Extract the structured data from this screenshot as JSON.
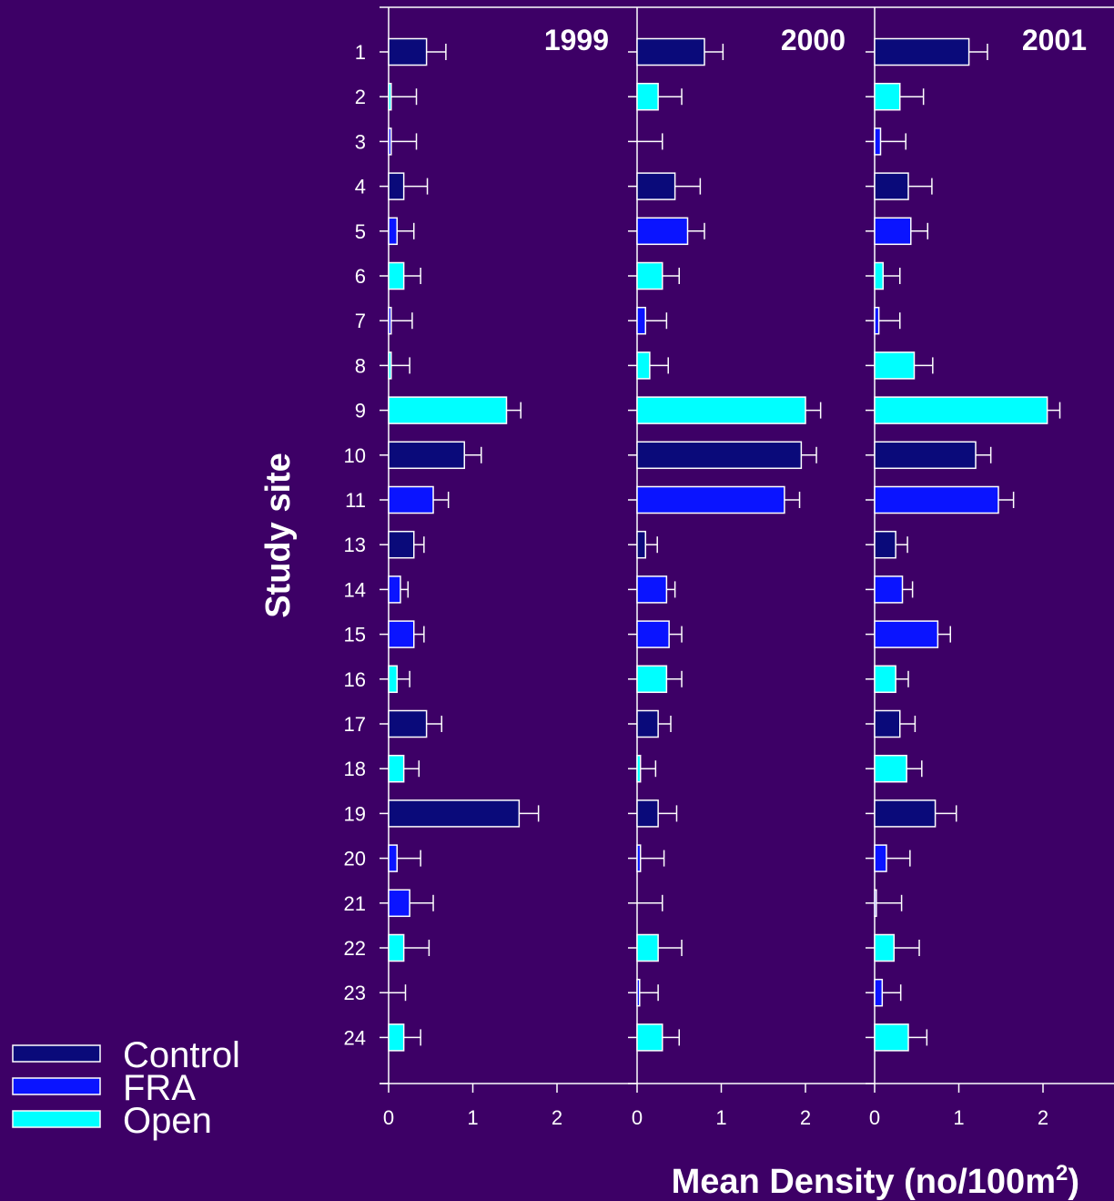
{
  "chart_data": {
    "type": "bar",
    "orientation": "horizontal",
    "ylabel": "Study site",
    "xlabel": "Mean Density (no/100m",
    "xlabel_superscript": "2",
    "xlabel_suffix": ")",
    "categories": [
      "1",
      "2",
      "3",
      "4",
      "5",
      "6",
      "7",
      "8",
      "9",
      "10",
      "11",
      "13",
      "14",
      "15",
      "16",
      "17",
      "18",
      "19",
      "20",
      "21",
      "22",
      "23",
      "24"
    ],
    "xlim": [
      0,
      3
    ],
    "xticks": [
      "0",
      "1",
      "2"
    ],
    "colors": {
      "Control": "#0a0a7a",
      "FRA": "#0a14ff",
      "Open": "#00ffff",
      "background": "#3d0066"
    },
    "legend": [
      {
        "name": "Control",
        "color": "#0a0a7a"
      },
      {
        "name": "FRA",
        "color": "#0a14ff"
      },
      {
        "name": "Open",
        "color": "#00ffff"
      }
    ],
    "legend_position": "bottom-left",
    "site_groups": [
      "Control",
      "Open",
      "FRA",
      "Control",
      "FRA",
      "Open",
      "FRA",
      "Open",
      "Open",
      "Control",
      "FRA",
      "Control",
      "FRA",
      "FRA",
      "Open",
      "Control",
      "Open",
      "Control",
      "FRA",
      "FRA",
      "Open",
      "FRA",
      "Open"
    ],
    "panels": [
      {
        "title": "1999",
        "values": [
          0.45,
          0.03,
          0.03,
          0.18,
          0.1,
          0.18,
          0.03,
          0.03,
          1.4,
          0.9,
          0.53,
          0.3,
          0.14,
          0.3,
          0.1,
          0.45,
          0.18,
          1.55,
          0.1,
          0.25,
          0.18,
          0.0,
          0.18
        ],
        "errors": [
          0.23,
          0.3,
          0.3,
          0.28,
          0.2,
          0.2,
          0.25,
          0.22,
          0.17,
          0.2,
          0.18,
          0.12,
          0.09,
          0.12,
          0.15,
          0.18,
          0.18,
          0.23,
          0.28,
          0.28,
          0.3,
          0.2,
          0.2
        ]
      },
      {
        "title": "2000",
        "values": [
          0.8,
          0.25,
          0.0,
          0.45,
          0.6,
          0.3,
          0.1,
          0.15,
          2.0,
          1.95,
          1.75,
          0.1,
          0.35,
          0.38,
          0.35,
          0.25,
          0.04,
          0.25,
          0.04,
          0.0,
          0.25,
          0.03,
          0.3
        ],
        "errors": [
          0.22,
          0.28,
          0.3,
          0.3,
          0.2,
          0.2,
          0.25,
          0.22,
          0.18,
          0.18,
          0.18,
          0.14,
          0.1,
          0.15,
          0.18,
          0.15,
          0.18,
          0.22,
          0.28,
          0.3,
          0.28,
          0.22,
          0.2
        ]
      },
      {
        "title": "2001",
        "values": [
          1.12,
          0.3,
          0.07,
          0.4,
          0.43,
          0.1,
          0.05,
          0.47,
          2.05,
          1.2,
          1.47,
          0.25,
          0.33,
          0.75,
          0.25,
          0.3,
          0.38,
          0.72,
          0.14,
          0.02,
          0.23,
          0.09,
          0.4
        ],
        "errors": [
          0.22,
          0.28,
          0.3,
          0.28,
          0.2,
          0.2,
          0.25,
          0.22,
          0.15,
          0.18,
          0.18,
          0.14,
          0.12,
          0.15,
          0.15,
          0.18,
          0.18,
          0.25,
          0.28,
          0.3,
          0.3,
          0.22,
          0.22
        ]
      }
    ]
  }
}
